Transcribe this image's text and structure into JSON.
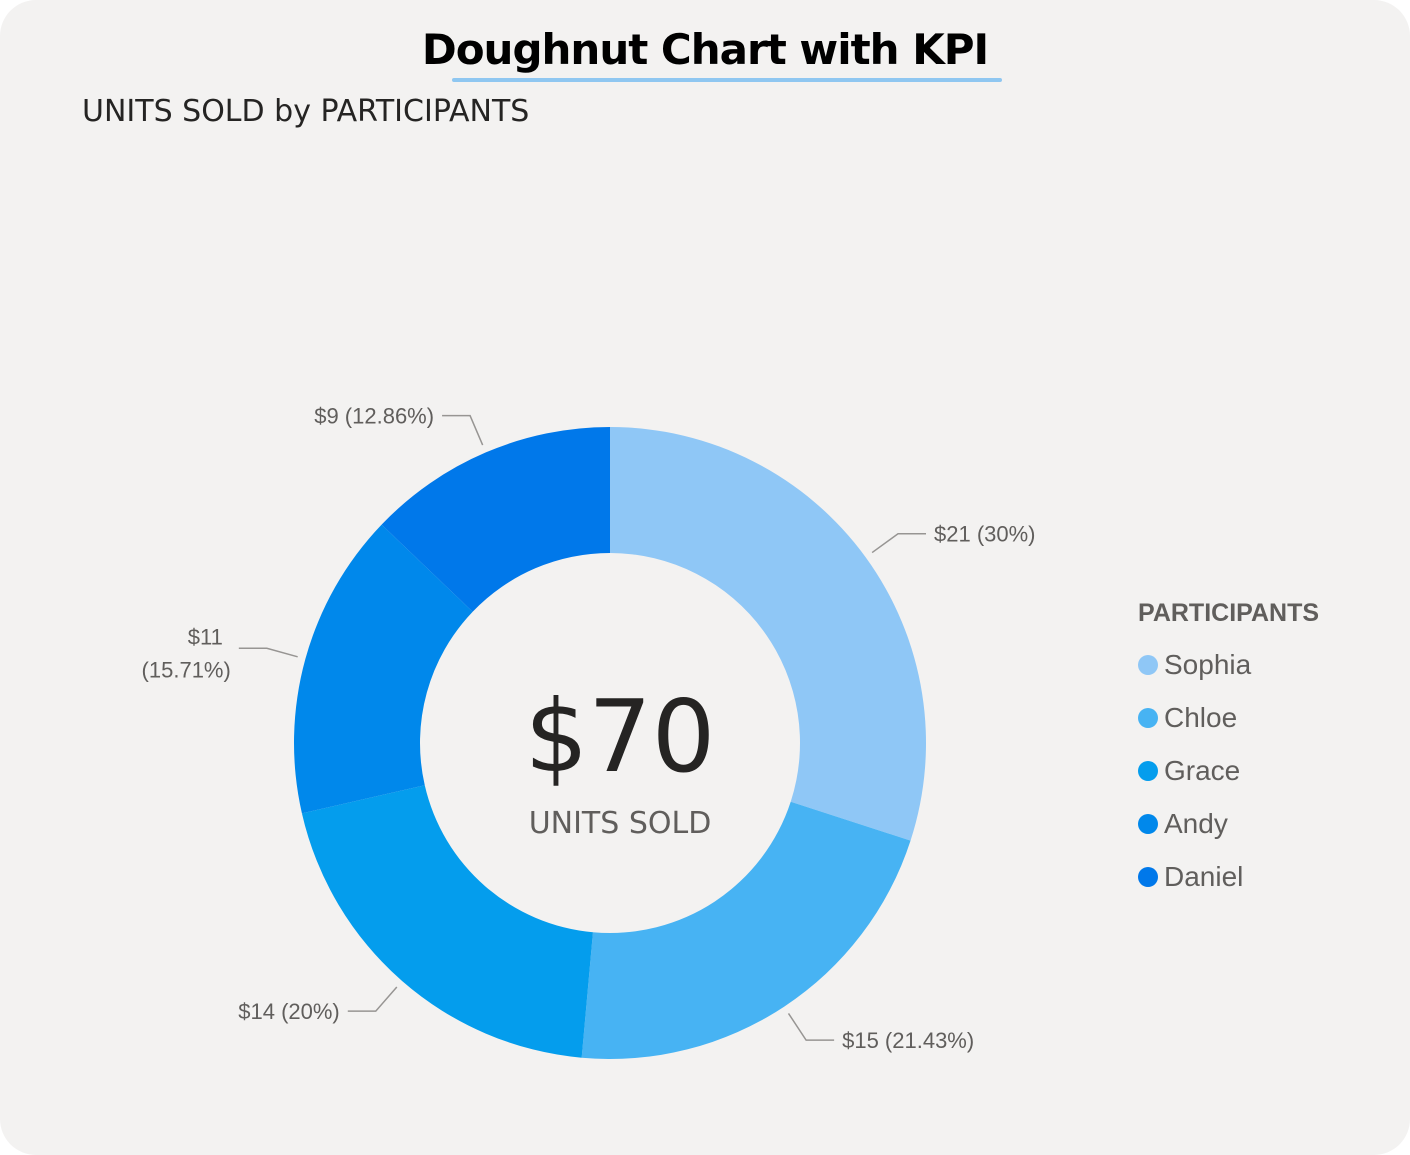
{
  "header": {
    "title": "Doughnut Chart with KPI"
  },
  "chart_data": {
    "type": "pie",
    "variant": "doughnut",
    "title": "UNITS SOLD by PARTICIPANTS",
    "legend_title": "PARTICIPANTS",
    "legend_position": "right",
    "categories": [
      "Sophia",
      "Chloe",
      "Grace",
      "Andy",
      "Daniel"
    ],
    "values": [
      21,
      15,
      14,
      11,
      9
    ],
    "data_labels": [
      "$21 (30%)",
      "$15 (21.43%)",
      "$14 (20%)",
      "$11 (15.71%)",
      "$9 (12.86%)"
    ],
    "colors": [
      "#8fc7f6",
      "#47b3f3",
      "#049ded",
      "#0088eb",
      "#0078ea"
    ],
    "center_kpi": {
      "value": "$70",
      "label": "UNITS SOLD"
    }
  }
}
